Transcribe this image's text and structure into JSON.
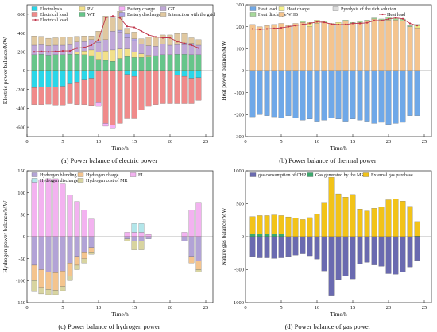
{
  "captions": {
    "a": "(a) Power balance of electric power",
    "b": "(b) Power balance of thermal power",
    "c": "(c) Power balance of hydrogen power",
    "d": "(d) Power balance of gas power"
  },
  "chart_data": [
    {
      "id": "a",
      "type": "bar",
      "stacked": true,
      "xlabel": "Time/h",
      "ylabel": "Electric power balance/MW",
      "xlim": [
        0,
        26
      ],
      "ylim": [
        -700,
        700
      ],
      "xticks": [
        0,
        5,
        10,
        15,
        20,
        25
      ],
      "yticks": [
        -600,
        -400,
        -200,
        0,
        200,
        400,
        600
      ],
      "x": [
        1,
        2,
        3,
        4,
        5,
        6,
        7,
        8,
        9,
        10,
        11,
        12,
        13,
        14,
        15,
        16,
        17,
        18,
        19,
        20,
        21,
        22,
        23,
        24
      ],
      "legend": [
        "Electrolysis",
        "PV",
        "Battery charge",
        "GT",
        "Electrical load",
        "WT",
        "Battery discharge",
        "Interaction with the grid",
        "Electrical load"
      ],
      "legend_placement": "top-left",
      "colors": {
        "Electrolysis": "#2ad6e8",
        "Electrical load": "#f08a8a",
        "PV": "#f2e08a",
        "WT": "#67c58a",
        "Battery charge": "#f7b0f7",
        "Battery discharge": "#b0a4e6",
        "GT": "#c0a8d8",
        "Interaction with the grid": "#e0c8a0",
        "line": "#c0354a"
      },
      "series": [
        {
          "name": "Electrolysis",
          "sign": "neg",
          "values": [
            -180,
            -170,
            -175,
            -175,
            -165,
            -140,
            -120,
            -100,
            -80,
            0,
            0,
            0,
            0,
            -40,
            -60,
            0,
            0,
            0,
            0,
            0,
            -50,
            -60,
            -80,
            -75
          ]
        },
        {
          "name": "Electrical load",
          "sign": "neg",
          "values": [
            -180,
            -190,
            -180,
            -190,
            -200,
            -210,
            -240,
            -260,
            -290,
            -340,
            -560,
            -580,
            -560,
            -470,
            -450,
            -420,
            -380,
            -360,
            -350,
            -350,
            -300,
            -290,
            -270,
            -240
          ]
        },
        {
          "name": "Battery charge",
          "sign": "neg",
          "values": [
            0,
            0,
            0,
            0,
            0,
            0,
            0,
            0,
            0,
            -40,
            -30,
            -30,
            0,
            0,
            0,
            0,
            0,
            0,
            0,
            0,
            0,
            0,
            0,
            0
          ]
        },
        {
          "name": "WT",
          "sign": "pos",
          "values": [
            170,
            175,
            165,
            170,
            170,
            175,
            175,
            170,
            160,
            120,
            110,
            100,
            130,
            150,
            140,
            140,
            145,
            160,
            170,
            170,
            175,
            175,
            170,
            170
          ]
        },
        {
          "name": "PV",
          "sign": "pos",
          "values": [
            0,
            0,
            0,
            0,
            0,
            0,
            20,
            40,
            60,
            80,
            100,
            120,
            100,
            80,
            60,
            40,
            20,
            0,
            0,
            0,
            0,
            0,
            0,
            0
          ]
        },
        {
          "name": "GT",
          "sign": "pos",
          "values": [
            100,
            100,
            100,
            100,
            100,
            100,
            110,
            100,
            110,
            100,
            120,
            200,
            180,
            120,
            120,
            100,
            100,
            100,
            110,
            100,
            100,
            100,
            100,
            100
          ]
        },
        {
          "name": "Battery discharge",
          "sign": "pos",
          "values": [
            0,
            0,
            0,
            0,
            0,
            0,
            0,
            0,
            0,
            20,
            0,
            0,
            20,
            40,
            20,
            0,
            0,
            0,
            0,
            0,
            0,
            20,
            20,
            0
          ]
        },
        {
          "name": "Interaction with the grid",
          "sign": "pos",
          "values": [
            100,
            90,
            80,
            80,
            90,
            80,
            60,
            60,
            40,
            100,
            250,
            140,
            200,
            60,
            70,
            60,
            90,
            100,
            100,
            110,
            120,
            100,
            60,
            60
          ]
        }
      ],
      "line": {
        "name": "Electrical load",
        "values": [
          200,
          205,
          200,
          205,
          210,
          210,
          240,
          245,
          270,
          330,
          560,
          580,
          560,
          470,
          460,
          420,
          380,
          360,
          350,
          350,
          310,
          290,
          270,
          240
        ]
      }
    },
    {
      "id": "b",
      "type": "bar",
      "stacked": true,
      "xlabel": "Time/h",
      "ylabel": "Heat power balance/MW",
      "xlim": [
        0,
        26
      ],
      "ylim": [
        -300,
        300
      ],
      "xticks": [
        0,
        5,
        10,
        15,
        20,
        25
      ],
      "yticks": [
        -300,
        -200,
        -100,
        0,
        100,
        200,
        300
      ],
      "x": [
        1,
        2,
        3,
        4,
        5,
        6,
        7,
        8,
        9,
        10,
        11,
        12,
        13,
        14,
        15,
        16,
        17,
        18,
        19,
        20,
        21,
        22,
        23,
        24
      ],
      "legend": [
        "Heat load",
        "Heat charge",
        "Pyrolysis of the rich solution",
        "Heat discharge",
        "WHB",
        "Heat load"
      ],
      "legend_placement": "top-left",
      "colors": {
        "Heat load": "#6fa8e8",
        "Heat charge": "#f5f28a",
        "Pyrolysis of the rich solution": "#dcdcdc",
        "Heat discharge": "#a6d89a",
        "WHB": "#f4c48e",
        "line": "#c0354a"
      },
      "series": [
        {
          "name": "Heat load",
          "sign": "neg",
          "values": [
            -210,
            -200,
            -205,
            -210,
            -215,
            -205,
            -215,
            -225,
            -220,
            -230,
            -225,
            -215,
            -220,
            -230,
            -220,
            -225,
            -230,
            -240,
            -235,
            -245,
            -240,
            -235,
            -205,
            -205
          ]
        },
        {
          "name": "WHB",
          "sign": "pos",
          "values": [
            210,
            200,
            205,
            210,
            215,
            205,
            215,
            220,
            200,
            215,
            220,
            215,
            210,
            225,
            215,
            220,
            225,
            235,
            225,
            230,
            230,
            225,
            200,
            195
          ]
        },
        {
          "name": "Heat charge",
          "sign": "pos",
          "values": [
            0,
            0,
            0,
            0,
            0,
            0,
            0,
            0,
            20,
            15,
            0,
            0,
            10,
            0,
            0,
            0,
            0,
            0,
            0,
            0,
            0,
            0,
            0,
            10
          ]
        },
        {
          "name": "Heat discharge",
          "sign": "pos",
          "values": [
            0,
            0,
            0,
            0,
            0,
            0,
            0,
            5,
            0,
            0,
            5,
            0,
            0,
            5,
            5,
            5,
            5,
            5,
            10,
            15,
            10,
            10,
            5,
            5
          ]
        }
      ],
      "line": {
        "name": "Heat load",
        "values": [
          190,
          188,
          190,
          192,
          195,
          200,
          205,
          210,
          215,
          222,
          220,
          212,
          210,
          210,
          215,
          215,
          218,
          228,
          228,
          235,
          240,
          236,
          215,
          205
        ]
      }
    },
    {
      "id": "c",
      "type": "bar",
      "stacked": true,
      "xlabel": "Time/h",
      "ylabel": "Hydrogen power balance/MW",
      "xlim": [
        0,
        26
      ],
      "ylim": [
        -150,
        150
      ],
      "xticks": [
        0,
        5,
        10,
        15,
        20,
        25
      ],
      "yticks": [
        -150,
        -100,
        -50,
        0,
        50,
        100,
        150
      ],
      "x": [
        1,
        2,
        3,
        4,
        5,
        6,
        7,
        8,
        9,
        10,
        11,
        12,
        13,
        14,
        15,
        16,
        17,
        18,
        19,
        20,
        21,
        22,
        23,
        24
      ],
      "legend": [
        "Hydrogen blending",
        "Hydrogen charge",
        "EL",
        "Hydrogen discharge",
        "Hydrogen cost of MR"
      ],
      "legend_placement": "top-left",
      "colors": {
        "Hydrogen blending": "#b2a3d6",
        "Hydrogen charge": "#f4c48e",
        "EL": "#f3b2f0",
        "Hydrogen discharge": "#b3e6ea",
        "Hydrogen cost of MR": "#d8d4a0"
      },
      "series": [
        {
          "name": "EL",
          "sign": "pos",
          "values": [
            130,
            130,
            132,
            132,
            120,
            95,
            80,
            60,
            40,
            0,
            0,
            0,
            0,
            10,
            10,
            10,
            5,
            0,
            0,
            0,
            0,
            10,
            60,
            78
          ]
        },
        {
          "name": "Hydrogen discharge",
          "sign": "pos",
          "values": [
            0,
            0,
            0,
            0,
            0,
            0,
            0,
            0,
            0,
            0,
            0,
            0,
            0,
            0,
            20,
            20,
            0,
            0,
            0,
            0,
            0,
            0,
            0,
            0
          ]
        },
        {
          "name": "Hydrogen blending",
          "sign": "neg",
          "values": [
            -65,
            -75,
            -80,
            -82,
            -78,
            -60,
            -45,
            -35,
            -25,
            0,
            0,
            0,
            0,
            -5,
            -10,
            -10,
            -5,
            0,
            0,
            0,
            0,
            -10,
            -45,
            -55
          ]
        },
        {
          "name": "Hydrogen charge",
          "sign": "neg",
          "values": [
            -35,
            -40,
            -40,
            -40,
            -35,
            -30,
            -20,
            -15,
            -10,
            0,
            0,
            0,
            0,
            0,
            0,
            0,
            0,
            0,
            0,
            0,
            0,
            0,
            -15,
            -20
          ]
        },
        {
          "name": "Hydrogen cost of MR",
          "sign": "neg",
          "values": [
            -25,
            -15,
            -12,
            -10,
            -10,
            -10,
            -10,
            -10,
            -5,
            0,
            0,
            0,
            0,
            -5,
            -20,
            -20,
            0,
            0,
            0,
            0,
            0,
            0,
            0,
            -5
          ]
        }
      ]
    },
    {
      "id": "d",
      "type": "bar",
      "stacked": true,
      "xlabel": "Time/h",
      "ylabel": "Nature gas balance/MW",
      "xlim": [
        0,
        26
      ],
      "ylim": [
        -1000,
        1000
      ],
      "xticks": [
        0,
        5,
        10,
        15,
        20,
        25
      ],
      "yticks": [
        -1000,
        -500,
        0,
        500,
        1000
      ],
      "x": [
        1,
        2,
        3,
        4,
        5,
        6,
        7,
        8,
        9,
        10,
        11,
        12,
        13,
        14,
        15,
        16,
        17,
        18,
        19,
        20,
        21,
        22,
        23,
        24
      ],
      "legend": [
        "gas consumption of CHP",
        "Gas generated by the MR",
        "External gas purchase"
      ],
      "legend_placement": "top",
      "colors": {
        "gas consumption of CHP": "#6a6ab0",
        "Gas generated by the MR": "#3caa6e",
        "External gas purchase": "#f2c318"
      },
      "series": [
        {
          "name": "gas consumption of CHP",
          "sign": "neg",
          "values": [
            -300,
            -320,
            -320,
            -330,
            -320,
            -300,
            -280,
            -260,
            -290,
            -340,
            -520,
            -900,
            -650,
            -600,
            -640,
            -420,
            -390,
            -430,
            -450,
            -560,
            -570,
            -540,
            -460,
            -360
          ]
        },
        {
          "name": "Gas generated by the MR",
          "sign": "pos",
          "values": [
            45,
            40,
            40,
            40,
            40,
            0,
            0,
            0,
            0,
            0,
            0,
            0,
            0,
            0,
            0,
            0,
            0,
            0,
            0,
            0,
            0,
            0,
            0,
            10
          ]
        },
        {
          "name": "External gas purchase",
          "sign": "pos",
          "values": [
            260,
            280,
            280,
            290,
            280,
            300,
            280,
            260,
            290,
            340,
            520,
            900,
            650,
            600,
            640,
            420,
            390,
            430,
            450,
            560,
            570,
            540,
            460,
            220
          ]
        }
      ]
    }
  ]
}
